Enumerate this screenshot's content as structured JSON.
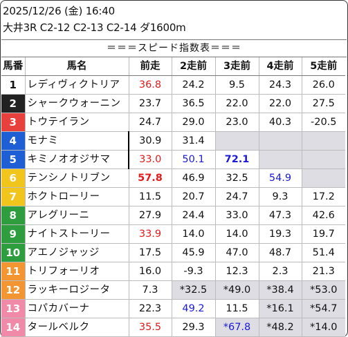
{
  "header": {
    "line1": "2025/12/26 (金) 16:40",
    "line2": "大井3R C2-12 C2-13 C2-14 ダ1600m"
  },
  "banner": "＝＝＝スピード指数表＝＝＝",
  "columns": [
    "馬番",
    "馬名",
    "前走",
    "2走前",
    "3走前",
    "4走前",
    "5走前"
  ],
  "colors": {
    "red": "#e31b1b",
    "blue": "#1a1ad8",
    "gray_cell": "#dedde3",
    "frame_1": "#ffffff",
    "frame_2": "#222222",
    "frame_3": "#e8403c",
    "frame_4": "#1f5fd6",
    "frame_5": "#f2c51d",
    "frame_6": "#2e9d3e",
    "frame_7": "#f39530",
    "frame_8": "#f08aa8"
  },
  "rows": [
    {
      "num": "1",
      "name": "レディヴィクトリア",
      "frame": "#ffffff",
      "numColor": "#111111",
      "cells": [
        {
          "v": "36.8",
          "c": "red"
        },
        {
          "v": "24.2"
        },
        {
          "v": "9.5"
        },
        {
          "v": "24.3"
        },
        {
          "v": "26.0"
        }
      ]
    },
    {
      "num": "2",
      "name": "シャークウォーニン",
      "frame": "#222222",
      "cells": [
        {
          "v": "23.7"
        },
        {
          "v": "36.5"
        },
        {
          "v": "22.0"
        },
        {
          "v": "22.0"
        },
        {
          "v": "27.5"
        }
      ]
    },
    {
      "num": "3",
      "name": "トウテイラン",
      "frame": "#e8403c",
      "cells": [
        {
          "v": "24.7"
        },
        {
          "v": "29.0"
        },
        {
          "v": "23.0"
        },
        {
          "v": "40.3"
        },
        {
          "v": "-20.5"
        }
      ]
    },
    {
      "num": "4",
      "name": "モナミ",
      "frame": "#1f5fd6",
      "sep": true,
      "cells": [
        {
          "v": "30.9"
        },
        {
          "v": "31.4"
        },
        {
          "v": "",
          "g": true
        },
        {
          "v": "",
          "g": true
        },
        {
          "v": "",
          "g": true
        }
      ]
    },
    {
      "num": "5",
      "name": "キミノオオジサマ",
      "frame": "#1f5fd6",
      "sep": true,
      "cells": [
        {
          "v": "33.0",
          "c": "red"
        },
        {
          "v": "50.1",
          "c": "blue"
        },
        {
          "v": "72.1",
          "c": "blue",
          "b": true
        },
        {
          "v": "",
          "g": true
        },
        {
          "v": "",
          "g": true
        }
      ]
    },
    {
      "num": "6",
      "name": "テンシノトリブン",
      "frame": "#f2c51d",
      "cells": [
        {
          "v": "57.8",
          "c": "red",
          "b": true
        },
        {
          "v": "46.9"
        },
        {
          "v": "32.5"
        },
        {
          "v": "54.9",
          "c": "blue"
        },
        {
          "v": "",
          "g": true
        }
      ]
    },
    {
      "num": "7",
      "name": "ホクトローリー",
      "frame": "#f2c51d",
      "cells": [
        {
          "v": "11.5"
        },
        {
          "v": "20.7"
        },
        {
          "v": "24.7"
        },
        {
          "v": "9.3"
        },
        {
          "v": "17.2"
        }
      ]
    },
    {
      "num": "8",
      "name": "アレグリーニ",
      "frame": "#2e9d3e",
      "cells": [
        {
          "v": "27.9"
        },
        {
          "v": "24.4"
        },
        {
          "v": "33.0"
        },
        {
          "v": "47.3"
        },
        {
          "v": "42.6"
        }
      ]
    },
    {
      "num": "9",
      "name": "ナイトストーリー",
      "frame": "#2e9d3e",
      "cells": [
        {
          "v": "33.9",
          "c": "red"
        },
        {
          "v": "14.0"
        },
        {
          "v": "14.0"
        },
        {
          "v": "19.3"
        },
        {
          "v": "19.7"
        }
      ]
    },
    {
      "num": "10",
      "name": "アエノジャッジ",
      "frame": "#2e9d3e",
      "cells": [
        {
          "v": "17.5"
        },
        {
          "v": "45.9"
        },
        {
          "v": "47.0"
        },
        {
          "v": "48.7"
        },
        {
          "v": "51.4"
        }
      ]
    },
    {
      "num": "11",
      "name": "トリフォーリオ",
      "frame": "#f39530",
      "cells": [
        {
          "v": "16.0"
        },
        {
          "v": "-9.3"
        },
        {
          "v": "12.3"
        },
        {
          "v": "2.3"
        },
        {
          "v": "21.3"
        }
      ]
    },
    {
      "num": "12",
      "name": "ラッキーロジータ",
      "frame": "#f39530",
      "cells": [
        {
          "v": "7.3"
        },
        {
          "v": "*32.5",
          "g": true
        },
        {
          "v": "*49.0",
          "g": true
        },
        {
          "v": "*38.4",
          "g": true
        },
        {
          "v": "*53.0",
          "g": true
        }
      ]
    },
    {
      "num": "13",
      "name": "コパカバーナ",
      "frame": "#f08aa8",
      "cells": [
        {
          "v": "22.3"
        },
        {
          "v": "49.2",
          "c": "blue"
        },
        {
          "v": "11.5"
        },
        {
          "v": "*16.1",
          "g": true
        },
        {
          "v": "*54.7",
          "g": true
        }
      ]
    },
    {
      "num": "14",
      "name": "タールベルク",
      "frame": "#f08aa8",
      "cells": [
        {
          "v": "35.5",
          "c": "red"
        },
        {
          "v": "29.3"
        },
        {
          "v": "*67.8",
          "c": "blue",
          "g": true
        },
        {
          "v": "*48.2",
          "g": true
        },
        {
          "v": "*14.0",
          "g": true
        }
      ]
    }
  ]
}
